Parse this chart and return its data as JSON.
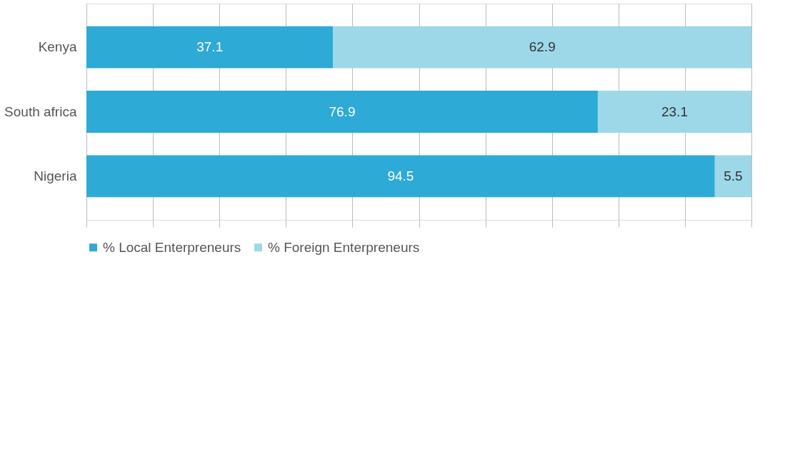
{
  "chart_data": {
    "type": "bar",
    "orientation": "horizontal",
    "stacked": true,
    "categories": [
      "Kenya",
      "South africa",
      "Nigeria"
    ],
    "series": [
      {
        "name": "% Local Enterpreneurs",
        "color": "#2eaad6",
        "values": [
          37.1,
          76.9,
          94.5
        ]
      },
      {
        "name": "% Foreign Enterpreneurs",
        "color": "#9dd8e8",
        "values": [
          62.9,
          23.1,
          5.5
        ]
      }
    ],
    "xlim": [
      0,
      100
    ],
    "xticks": [
      {
        "value": 0,
        "label": null
      },
      {
        "value": 10,
        "label": null
      },
      {
        "value": 20,
        "label": null
      },
      {
        "value": 30,
        "label": null
      },
      {
        "value": 40,
        "label": null
      },
      {
        "value": 50,
        "label": null
      },
      {
        "value": 60,
        "label": null
      },
      {
        "value": 70,
        "label": null
      },
      {
        "value": 80,
        "label": null
      },
      {
        "value": 90,
        "label": null
      },
      {
        "value": 100,
        "label": null
      }
    ],
    "tick_labels": "y",
    "grid": "x",
    "legend": "bottom",
    "data_labels": true
  }
}
